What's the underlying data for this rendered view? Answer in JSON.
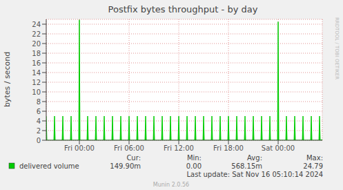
{
  "chart_data": {
    "type": "area",
    "title": "Postfix bytes throughput - by day",
    "y_label": "bytes / second",
    "x": [
      -4,
      -3.92,
      -3.08,
      -3,
      -2.92,
      -2.08,
      -2,
      -1.92,
      -1.08,
      -1,
      -0.92,
      -0.08,
      0,
      0.08,
      0.92,
      1,
      1.08,
      1.92,
      2,
      2.08,
      2.92,
      3,
      3.08,
      3.92,
      4,
      4.08,
      4.92,
      5,
      5.08,
      5.92,
      6,
      6.08,
      6.92,
      7,
      7.08,
      7.92,
      8,
      8.08,
      8.92,
      9,
      9.08,
      9.92,
      10,
      10.08,
      10.92,
      11,
      11.08,
      11.92,
      12,
      12.08,
      12.92,
      13,
      13.08,
      13.92,
      14,
      14.08,
      14.92,
      15,
      15.08,
      15.92,
      16,
      16.08,
      16.92,
      17,
      17.08,
      17.92,
      18,
      18.08,
      18.92,
      19,
      19.08,
      19.92,
      20,
      20.08,
      20.92,
      21,
      21.08,
      21.92,
      22,
      22.08,
      22.92,
      23,
      23.08,
      23.92,
      24,
      24.08,
      24.92,
      25,
      25.08,
      25.92,
      26,
      26.08,
      26.92,
      27,
      27.08,
      27.92,
      28,
      28.08,
      28.92,
      29,
      29.08,
      29.33
    ],
    "series": [
      {
        "name": "delivered volume",
        "color": "#00cc00",
        "values": [
          5,
          0,
          0,
          5,
          0,
          0,
          5,
          0,
          0,
          5,
          0,
          0,
          24.9,
          0,
          0,
          5,
          0,
          0,
          5,
          0,
          0,
          5,
          0,
          0,
          5,
          0,
          0,
          5,
          0,
          0,
          5,
          0,
          0,
          5,
          0,
          0,
          5,
          0,
          0,
          5,
          0,
          0,
          5,
          0,
          0,
          5,
          0,
          0,
          5,
          0,
          0,
          5,
          0,
          0,
          5,
          0,
          0,
          5,
          0,
          0,
          5,
          0,
          0,
          5,
          0,
          0,
          5,
          0,
          0,
          5,
          0,
          0,
          5,
          0,
          0,
          5,
          0,
          0,
          5,
          0,
          0,
          5,
          0,
          0,
          24.5,
          0,
          0,
          5,
          0,
          0,
          5,
          0,
          0,
          5,
          0,
          0,
          5,
          0,
          0,
          5,
          0,
          0.15
        ]
      }
    ],
    "xlim": [
      -4,
      29.33
    ],
    "xticks": [
      {
        "value": 0,
        "label": "Fri 00:00"
      },
      {
        "value": 6,
        "label": "Fri 06:00"
      },
      {
        "value": 12,
        "label": "Fri 12:00"
      },
      {
        "value": 18,
        "label": "Fri 18:00"
      },
      {
        "value": 24,
        "label": "Sat 00:00"
      }
    ],
    "ylim": [
      0,
      25
    ],
    "yticks": [
      0,
      2,
      4,
      6,
      8,
      10,
      12,
      14,
      16,
      18,
      20,
      22,
      24
    ],
    "grid": true,
    "legend": "bottom",
    "stats": [
      {
        "label": "Cur:",
        "value": "149.90m"
      },
      {
        "label": "Min:",
        "value": "0.00"
      },
      {
        "label": "Avg:",
        "value": "568.15m"
      },
      {
        "label": "Max:",
        "value": "24.79"
      }
    ],
    "last_update": "Last update: Sat Nov 16 05:10:14 2024",
    "footer": "Munin 2.0.56",
    "side_text": "RRDTOOL / TOBI OETIKER"
  }
}
